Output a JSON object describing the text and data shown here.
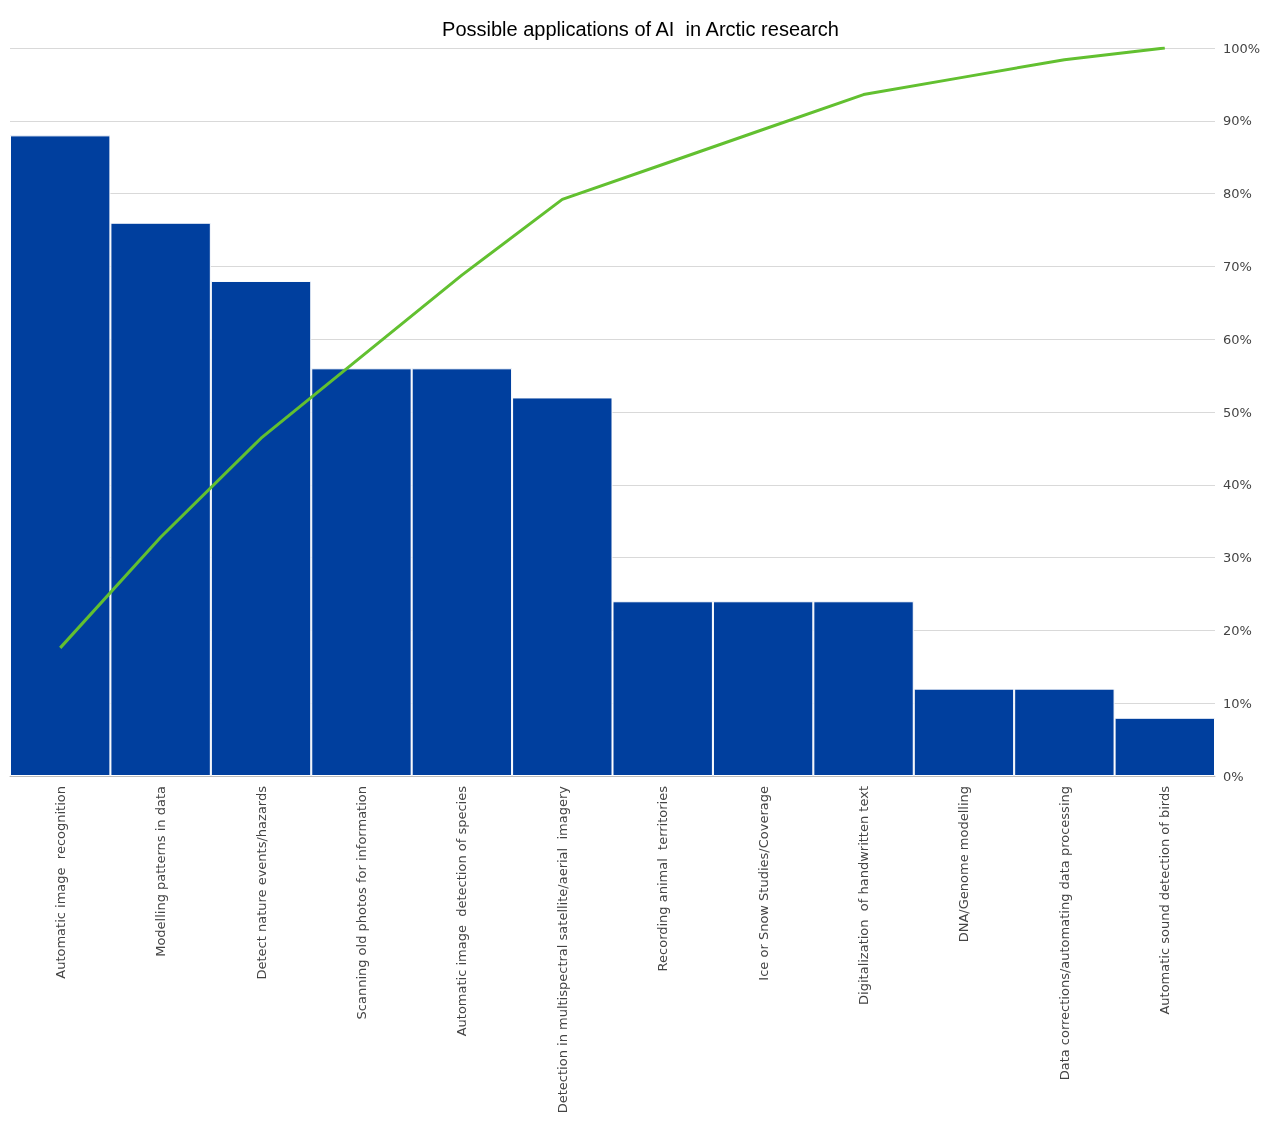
{
  "chart_data": {
    "type": "bar",
    "title": "Possible applications of AI  in Arctic research",
    "categories": [
      "Automatic image  recognition",
      "Modelling patterns in data",
      "Detect nature events/hazards",
      "Scanning old photos for information",
      "Automatic image  detection of species",
      "Detection in multispectral satellite/aerial  imagery",
      "Recording animal  territories",
      "Ice or Snow Studies/Coverage",
      "Digitalization  of handwritten text",
      "DNA/Genome modelling",
      "Data corrections/automating data processing",
      "Automatic sound detection of birds"
    ],
    "series": [
      {
        "axis": "y2",
        "color": "#003f9e",
        "values": [
          88,
          76,
          68,
          56,
          56,
          52,
          24,
          24,
          24,
          12,
          12,
          8
        ]
      },
      {
        "type": "line",
        "axis": "y2",
        "color": "#62c030",
        "values": [
          17.6,
          32.8,
          46.4,
          57.6,
          68.8,
          79.2,
          84,
          88.8,
          93.6,
          96,
          98.4,
          100
        ]
      }
    ],
    "y2lim": [
      0,
      100
    ],
    "y2ticks": [
      {
        "value": 0,
        "label": "0%"
      },
      {
        "value": 10,
        "label": "10%"
      },
      {
        "value": 20,
        "label": "20%"
      },
      {
        "value": 30,
        "label": "30%"
      },
      {
        "value": 40,
        "label": "40%"
      },
      {
        "value": 50,
        "label": "50%"
      },
      {
        "value": 60,
        "label": "60%"
      },
      {
        "value": 70,
        "label": "70%"
      },
      {
        "value": 80,
        "label": "80%"
      },
      {
        "value": 90,
        "label": "90%"
      },
      {
        "value": 100,
        "label": "100%"
      }
    ],
    "grid": "y2",
    "marker": "none"
  }
}
